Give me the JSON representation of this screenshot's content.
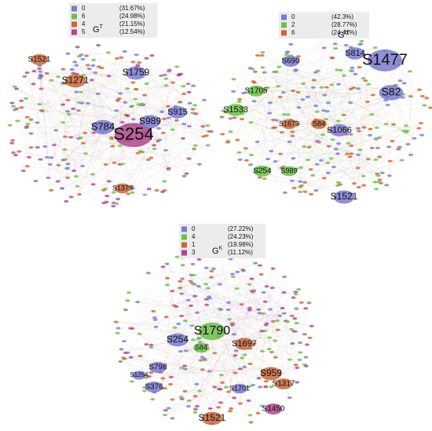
{
  "graphs": [
    {
      "title": "G",
      "title_sup": "T",
      "legend": [
        {
          "label": "0",
          "pct": "(31.67%)",
          "color": "#7b7bd0"
        },
        {
          "label": "6",
          "pct": "(24.98%)",
          "color": "#6cbf4a"
        },
        {
          "label": "4",
          "pct": "(21.15%)",
          "color": "#c8683a"
        },
        {
          "label": "5",
          "pct": "(12.54%)",
          "color": "#b0468c"
        }
      ],
      "nodes": [
        {
          "label": "S1521",
          "color": "#c8683a"
        },
        {
          "label": "S1271",
          "color": "#c8683a"
        },
        {
          "label": "S1759",
          "color": "#7b7bd0"
        },
        {
          "label": "S784",
          "color": "#7b7bd0"
        },
        {
          "label": "S254",
          "color": "#b0468c"
        },
        {
          "label": "S989",
          "color": "#7b7bd0"
        },
        {
          "label": "S915",
          "color": "#7b7bd0"
        },
        {
          "label": "S1379",
          "color": "#c8683a"
        }
      ]
    },
    {
      "title": "G",
      "title_sup": "H",
      "legend": [
        {
          "label": "0",
          "pct": "(42.3%)",
          "color": "#7b7bd0"
        },
        {
          "label": "2",
          "pct": "(28.77%)",
          "color": "#6cbf4a"
        },
        {
          "label": "6",
          "pct": "(24.42%)",
          "color": "#c8683a"
        }
      ],
      "nodes": [
        {
          "label": "S1477",
          "color": "#7b7bd0"
        },
        {
          "label": "S690",
          "color": "#7b7bd0"
        },
        {
          "label": "S814",
          "color": "#7b7bd0"
        },
        {
          "label": "S82",
          "color": "#7b7bd0"
        },
        {
          "label": "S1705",
          "color": "#6cbf4a"
        },
        {
          "label": "S1533",
          "color": "#6cbf4a"
        },
        {
          "label": "S1673",
          "color": "#c8683a"
        },
        {
          "label": "S84",
          "color": "#c8683a"
        },
        {
          "label": "S1066",
          "color": "#7b7bd0"
        },
        {
          "label": "S254",
          "color": "#6cbf4a"
        },
        {
          "label": "S989",
          "color": "#6cbf4a"
        },
        {
          "label": "S1521",
          "color": "#7b7bd0"
        }
      ]
    },
    {
      "title": "G",
      "title_sup": "K",
      "legend": [
        {
          "label": "0",
          "pct": "(27.22%)",
          "color": "#7b7bd0"
        },
        {
          "label": "4",
          "pct": "(24.23%)",
          "color": "#6cbf4a"
        },
        {
          "label": "1",
          "pct": "(19.98%)",
          "color": "#c8683a"
        },
        {
          "label": "3",
          "pct": "(11.12%)",
          "color": "#b0468c"
        }
      ],
      "nodes": [
        {
          "label": "S1790",
          "color": "#6cbf4a"
        },
        {
          "label": "S254",
          "color": "#7b7bd0"
        },
        {
          "label": "S1697",
          "color": "#c8683a"
        },
        {
          "label": "S84",
          "color": "#6cbf4a"
        },
        {
          "label": "S798",
          "color": "#7b7bd0"
        },
        {
          "label": "S959",
          "color": "#c8683a"
        },
        {
          "label": "S376",
          "color": "#7b7bd0"
        },
        {
          "label": "S1317",
          "color": "#c8683a"
        },
        {
          "label": "S1701",
          "color": "#7b7bd0"
        },
        {
          "label": "S1450",
          "color": "#b0468c"
        },
        {
          "label": "S1521",
          "color": "#c8683a"
        },
        {
          "label": "S1254",
          "color": "#7b7bd0"
        }
      ]
    }
  ]
}
